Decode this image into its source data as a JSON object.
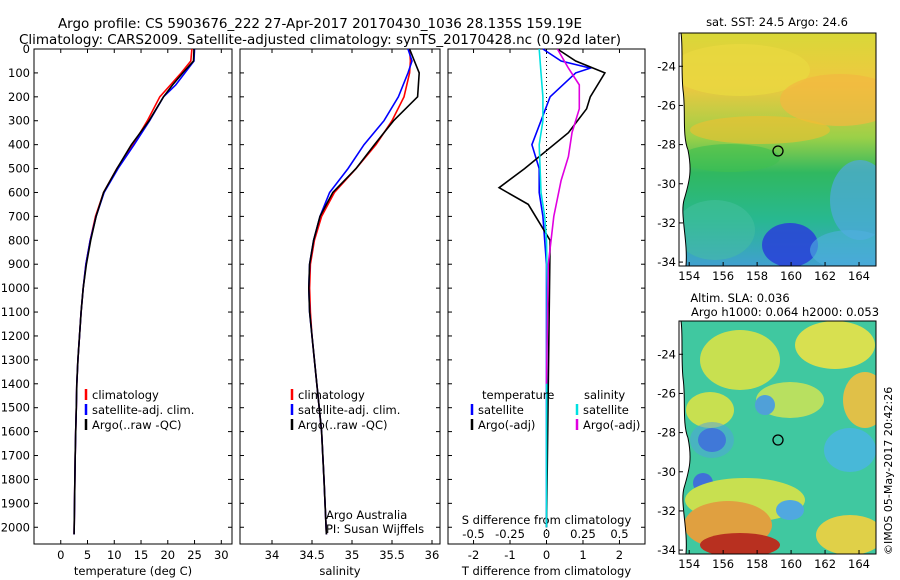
{
  "header": {
    "line1": "Argo profile: CS 5903676_222 27-Apr-2017 20170430_1036 28.135S 159.19E",
    "line2": "Climatology: CARS2009. Satellite-adjusted climatology: synTS_20170428.nc (0.92d later)"
  },
  "colors": {
    "climatology": "#ff0000",
    "satellite": "#0000ff",
    "argo": "#000000",
    "sat_salinity": "#00e0e0",
    "argo_salinity": "#e000e0"
  },
  "credit": {
    "argo_australia": "Argo Australia",
    "pi": "PI: Susan Wijffels"
  },
  "stamp": "©IMOS 05-May-2017 20:42:26",
  "chart_data": [
    {
      "type": "line",
      "title": "",
      "xlabel": "temperature (deg C)",
      "ylabel": "",
      "xlim": [
        -5,
        32
      ],
      "ylim": [
        2070,
        0
      ],
      "xticks": [
        0,
        5,
        10,
        15,
        20,
        25,
        30
      ],
      "yticks": [
        0,
        100,
        200,
        300,
        400,
        500,
        600,
        700,
        800,
        900,
        1000,
        1100,
        1200,
        1300,
        1400,
        1500,
        1600,
        1700,
        1800,
        1900,
        2000
      ],
      "legend": {
        "position": "lower-center",
        "entries": [
          "climatology",
          "satellite-adj. clim.",
          "Argo(..raw -QC)"
        ]
      },
      "series": [
        {
          "name": "climatology",
          "color": "#ff0000",
          "x": [
            24.5,
            24.3,
            22.5,
            20.5,
            18.5,
            16.2,
            13.5,
            10.5,
            8.0,
            6.5,
            5.5,
            4.7,
            4.2,
            3.8,
            3.5,
            3.2,
            3.0,
            2.9,
            2.8,
            2.7,
            2.6,
            2.5
          ],
          "y": [
            0,
            50,
            100,
            150,
            200,
            300,
            400,
            500,
            600,
            700,
            800,
            900,
            1000,
            1100,
            1200,
            1300,
            1400,
            1500,
            1600,
            1700,
            1850,
            2030
          ]
        },
        {
          "name": "satellite-adj. clim.",
          "color": "#0000ff",
          "x": [
            25.0,
            24.9,
            23.2,
            21.5,
            19.2,
            16.6,
            13.7,
            10.7,
            8.1,
            6.6,
            5.5,
            4.7,
            4.2,
            3.8,
            3.5,
            3.2,
            3.0,
            2.9,
            2.8,
            2.7,
            2.6,
            2.5
          ],
          "y": [
            0,
            50,
            100,
            150,
            200,
            300,
            400,
            500,
            600,
            700,
            800,
            900,
            1000,
            1100,
            1200,
            1300,
            1400,
            1500,
            1600,
            1700,
            1850,
            2030
          ]
        },
        {
          "name": "Argo(..raw -QC)",
          "color": "#000000",
          "x": [
            24.9,
            24.8,
            22.8,
            20.9,
            19.2,
            16.5,
            13.2,
            10.5,
            8.0,
            6.6,
            5.6,
            4.8,
            4.2,
            3.8,
            3.5,
            3.2,
            3.0,
            2.9,
            2.8,
            2.7,
            2.6,
            2.5
          ],
          "y": [
            0,
            50,
            100,
            150,
            200,
            300,
            400,
            500,
            600,
            700,
            800,
            900,
            1000,
            1100,
            1200,
            1300,
            1400,
            1500,
            1600,
            1700,
            1850,
            2030
          ]
        }
      ]
    },
    {
      "type": "line",
      "title": "",
      "xlabel": "salinity",
      "ylabel": "",
      "xlim": [
        33.6,
        36.1
      ],
      "ylim": [
        2070,
        0
      ],
      "xticks": [
        34,
        34.5,
        35,
        35.5,
        36
      ],
      "legend": {
        "position": "lower-center",
        "entries": [
          "climatology",
          "satellite-adj. clim.",
          "Argo(..raw -QC)"
        ]
      },
      "series": [
        {
          "name": "climatology",
          "color": "#ff0000",
          "x": [
            35.72,
            35.73,
            35.72,
            35.65,
            35.5,
            35.3,
            35.05,
            34.78,
            34.62,
            34.53,
            34.48,
            34.47,
            34.48,
            34.5,
            34.53,
            34.56,
            34.59,
            34.62,
            34.65,
            34.68
          ],
          "y": [
            0,
            50,
            100,
            200,
            300,
            400,
            500,
            600,
            700,
            800,
            900,
            1000,
            1100,
            1200,
            1300,
            1400,
            1500,
            1600,
            1800,
            2030
          ]
        },
        {
          "name": "satellite-adj. clim.",
          "color": "#0000ff",
          "x": [
            35.7,
            35.75,
            35.7,
            35.58,
            35.4,
            35.15,
            34.95,
            34.72,
            34.6,
            34.52,
            34.47,
            34.46,
            34.47,
            34.5,
            34.53,
            34.56,
            34.59,
            34.62,
            34.65,
            34.68
          ],
          "y": [
            0,
            50,
            100,
            200,
            300,
            400,
            500,
            600,
            700,
            800,
            900,
            1000,
            1100,
            1200,
            1300,
            1400,
            1500,
            1600,
            1800,
            2030
          ]
        },
        {
          "name": "Argo(..raw -QC)",
          "color": "#000000",
          "x": [
            35.72,
            35.78,
            35.84,
            35.82,
            35.52,
            35.28,
            35.05,
            34.76,
            34.6,
            34.52,
            34.47,
            34.46,
            34.47,
            34.5,
            34.53,
            34.56,
            34.59,
            34.62,
            34.65,
            34.68
          ],
          "y": [
            0,
            50,
            100,
            200,
            300,
            400,
            500,
            600,
            700,
            800,
            900,
            1000,
            1100,
            1200,
            1300,
            1400,
            1500,
            1600,
            1800,
            2030
          ]
        }
      ]
    },
    {
      "type": "line",
      "title": "",
      "xlabel": "T difference from climatology",
      "xlabel_top": "S difference from climatology",
      "ylabel": "",
      "xlim": [
        -2.7,
        2.7
      ],
      "ylim": [
        2070,
        0
      ],
      "xticks": [
        -2,
        -1,
        0,
        1,
        2
      ],
      "s_xticks": [
        "-0.5",
        "-0.25",
        "0",
        "0.25",
        "0.5"
      ],
      "legend": {
        "position": "lower-center",
        "headers": [
          "temperature",
          "salinity"
        ],
        "entries": [
          "satellite",
          "Argo(-adj)",
          "satellite",
          "Argo(-adj)"
        ]
      },
      "series": [
        {
          "name": "temperature satellite",
          "color": "#0000ff",
          "x": [
            -0.1,
            0.4,
            1.2,
            0.8,
            0.1,
            -0.4,
            -0.2,
            -0.2,
            -0.1,
            0,
            0,
            0
          ],
          "y": [
            0,
            50,
            80,
            100,
            200,
            400,
            500,
            600,
            700,
            900,
            1400,
            2000
          ]
        },
        {
          "name": "temperature Argo(-adj)",
          "color": "#000000",
          "x": [
            0.3,
            0.8,
            1.6,
            1.2,
            1.1,
            0.6,
            -0.6,
            -1.3,
            -0.5,
            0.1,
            0.05,
            0
          ],
          "y": [
            0,
            50,
            100,
            200,
            250,
            350,
            500,
            580,
            650,
            800,
            1400,
            2000
          ]
        },
        {
          "name": "salinity satellite",
          "color": "#00e0e0",
          "x": [
            -0.2,
            -0.15,
            -0.1,
            -0.1,
            -0.2,
            -0.15,
            -0.05,
            0,
            0.02,
            0,
            0
          ],
          "y": [
            0,
            100,
            200,
            300,
            400,
            600,
            700,
            800,
            1000,
            1600,
            2000
          ]
        },
        {
          "name": "salinity Argo(-adj)",
          "color": "#e000e0",
          "x": [
            0.3,
            0.6,
            0.9,
            0.9,
            0.7,
            0.6,
            0.4,
            0.2,
            0.05,
            0
          ],
          "y": [
            0,
            80,
            150,
            250,
            350,
            450,
            550,
            700,
            900,
            1400
          ]
        }
      ]
    },
    {
      "type": "heatmap",
      "title": "sat. SST: 24.5  Argo: 24.6",
      "xticks": [
        154,
        156,
        158,
        160,
        162,
        164
      ],
      "yticks": [
        -24,
        -26,
        -28,
        -30,
        -32,
        -34
      ],
      "xlim": [
        153.4,
        165.0
      ],
      "ylim": [
        -34.2,
        -22.3
      ],
      "marker": {
        "lon": 159.19,
        "lat": -28.135
      }
    },
    {
      "type": "heatmap",
      "title": "Altim. SLA: 0.036",
      "subtitle": "Argo h1000: 0.064  h2000: 0.053",
      "xticks": [
        154,
        156,
        158,
        160,
        162,
        164
      ],
      "yticks": [
        -24,
        -26,
        -28,
        -30,
        -32,
        -34
      ],
      "xlim": [
        153.4,
        165.0
      ],
      "ylim": [
        -34.2,
        -22.3
      ],
      "marker": {
        "lon": 159.19,
        "lat": -28.135
      }
    }
  ]
}
